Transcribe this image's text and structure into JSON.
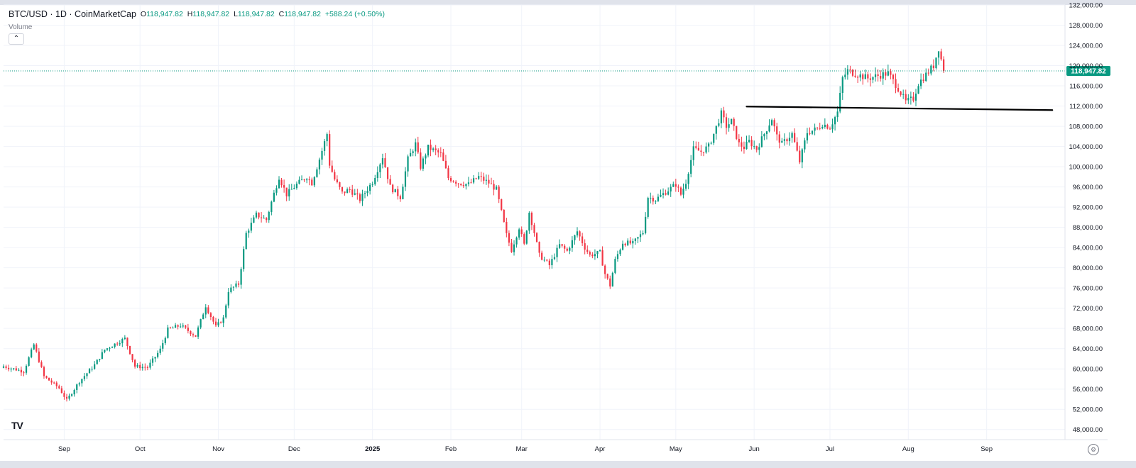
{
  "header": {
    "symbol": "BTC/USD · 1D · CoinMarketCap",
    "open_label": "O",
    "open": "118,947.82",
    "high_label": "H",
    "high": "118,947.82",
    "low_label": "L",
    "low": "118,947.82",
    "close_label": "C",
    "close": "118,947.82",
    "change": "+588.24 (+0.50%)",
    "volume_label": "Volume",
    "collapse": "⌃"
  },
  "logo": "TV",
  "colors": {
    "up": "#089981",
    "down": "#f23645",
    "trendline": "#000000",
    "price_line": "#089981"
  },
  "chart_data": {
    "type": "candlestick",
    "title": "BTC/USD · 1D · CoinMarketCap",
    "last_price": 118947.82,
    "last_price_label": "118,947.82",
    "ylim": [
      46000,
      132000
    ],
    "y_ticks": [
      48000,
      52000,
      56000,
      60000,
      64000,
      68000,
      72000,
      76000,
      80000,
      84000,
      88000,
      92000,
      96000,
      100000,
      104000,
      108000,
      112000,
      116000,
      120000,
      124000,
      128000,
      132000
    ],
    "y_tick_labels": [
      "48,000.00",
      "52,000.00",
      "56,000.00",
      "60,000.00",
      "64,000.00",
      "68,000.00",
      "72,000.00",
      "76,000.00",
      "80,000.00",
      "84,000.00",
      "88,000.00",
      "92,000.00",
      "96,000.00",
      "100,000.00",
      "104,000.00",
      "108,000.00",
      "112,000.00",
      "116,000.00",
      "120,000.00",
      "124,000.00",
      "128,000.00",
      "132,000.00"
    ],
    "x_ticks": [
      {
        "label": "Sep",
        "day": 24,
        "bold": false
      },
      {
        "label": "Oct",
        "day": 54,
        "bold": false
      },
      {
        "label": "Nov",
        "day": 85,
        "bold": false
      },
      {
        "label": "Dec",
        "day": 115,
        "bold": false
      },
      {
        "label": "2025",
        "day": 146,
        "bold": true
      },
      {
        "label": "Feb",
        "day": 177,
        "bold": false
      },
      {
        "label": "Mar",
        "day": 205,
        "bold": false
      },
      {
        "label": "Apr",
        "day": 236,
        "bold": false
      },
      {
        "label": "May",
        "day": 266,
        "bold": false
      },
      {
        "label": "Jun",
        "day": 297,
        "bold": false
      },
      {
        "label": "Jul",
        "day": 327,
        "bold": false
      },
      {
        "label": "Aug",
        "day": 358,
        "bold": false
      },
      {
        "label": "Sep",
        "day": 389,
        "bold": false
      }
    ],
    "x_range_days": [
      0,
      420
    ],
    "start_date": "2024-08-08",
    "anchors": [
      [
        0,
        60500
      ],
      [
        8,
        59500
      ],
      [
        12,
        64800
      ],
      [
        16,
        58500
      ],
      [
        22,
        56200
      ],
      [
        25,
        53800
      ],
      [
        30,
        57500
      ],
      [
        36,
        60800
      ],
      [
        40,
        63800
      ],
      [
        48,
        66000
      ],
      [
        52,
        60500
      ],
      [
        57,
        60300
      ],
      [
        62,
        63800
      ],
      [
        65,
        67800
      ],
      [
        70,
        68600
      ],
      [
        76,
        66500
      ],
      [
        80,
        72500
      ],
      [
        84,
        68300
      ],
      [
        87,
        70000
      ],
      [
        89,
        75500
      ],
      [
        93,
        76800
      ],
      [
        96,
        86800
      ],
      [
        100,
        90500
      ],
      [
        104,
        89500
      ],
      [
        106,
        93000
      ],
      [
        109,
        98000
      ],
      [
        112,
        94500
      ],
      [
        116,
        96500
      ],
      [
        120,
        98000
      ],
      [
        122,
        96800
      ],
      [
        125,
        101500
      ],
      [
        128,
        106500
      ],
      [
        129,
        100500
      ],
      [
        131,
        97500
      ],
      [
        134,
        94800
      ],
      [
        137,
        95500
      ],
      [
        141,
        93500
      ],
      [
        146,
        97000
      ],
      [
        150,
        102000
      ],
      [
        153,
        96000
      ],
      [
        157,
        94000
      ],
      [
        160,
        101500
      ],
      [
        163,
        104500
      ],
      [
        165,
        100000
      ],
      [
        168,
        103800
      ],
      [
        173,
        102500
      ],
      [
        176,
        97800
      ],
      [
        180,
        96800
      ],
      [
        184,
        96500
      ],
      [
        188,
        98000
      ],
      [
        192,
        96800
      ],
      [
        195,
        95500
      ],
      [
        197,
        91000
      ],
      [
        199,
        86500
      ],
      [
        201,
        83500
      ],
      [
        204,
        88000
      ],
      [
        206,
        84500
      ],
      [
        208,
        91000
      ],
      [
        210,
        87000
      ],
      [
        212,
        82500
      ],
      [
        216,
        80500
      ],
      [
        220,
        84500
      ],
      [
        223,
        83300
      ],
      [
        227,
        87200
      ],
      [
        230,
        84000
      ],
      [
        232,
        82500
      ],
      [
        236,
        83000
      ],
      [
        238,
        78800
      ],
      [
        240,
        76500
      ],
      [
        242,
        81500
      ],
      [
        245,
        85000
      ],
      [
        249,
        84800
      ],
      [
        253,
        87000
      ],
      [
        255,
        94000
      ],
      [
        258,
        93500
      ],
      [
        262,
        95000
      ],
      [
        266,
        96500
      ],
      [
        268,
        94500
      ],
      [
        270,
        97000
      ],
      [
        273,
        103500
      ],
      [
        276,
        103000
      ],
      [
        279,
        104000
      ],
      [
        281,
        106500
      ],
      [
        284,
        110500
      ],
      [
        286,
        108000
      ],
      [
        288,
        109000
      ],
      [
        291,
        104500
      ],
      [
        293,
        103800
      ],
      [
        295,
        105000
      ],
      [
        298,
        103500
      ],
      [
        300,
        105500
      ],
      [
        304,
        109500
      ],
      [
        306,
        106000
      ],
      [
        308,
        104500
      ],
      [
        312,
        106500
      ],
      [
        315,
        101000
      ],
      [
        318,
        106800
      ],
      [
        322,
        107500
      ],
      [
        324,
        108500
      ],
      [
        327,
        107800
      ],
      [
        330,
        110800
      ],
      [
        332,
        117500
      ],
      [
        334,
        119000
      ],
      [
        338,
        118200
      ],
      [
        342,
        117500
      ],
      [
        346,
        118000
      ],
      [
        350,
        118500
      ],
      [
        354,
        115500
      ],
      [
        357,
        112800
      ],
      [
        360,
        113500
      ],
      [
        362,
        116500
      ],
      [
        366,
        118800
      ],
      [
        368,
        120000
      ],
      [
        370,
        123500
      ],
      [
        372,
        118947.82
      ]
    ],
    "trendline": [
      [
        294,
        111900
      ],
      [
        415,
        111200
      ]
    ],
    "series": [
      {
        "name": "BTC/USD",
        "type": "candlestick"
      }
    ]
  }
}
